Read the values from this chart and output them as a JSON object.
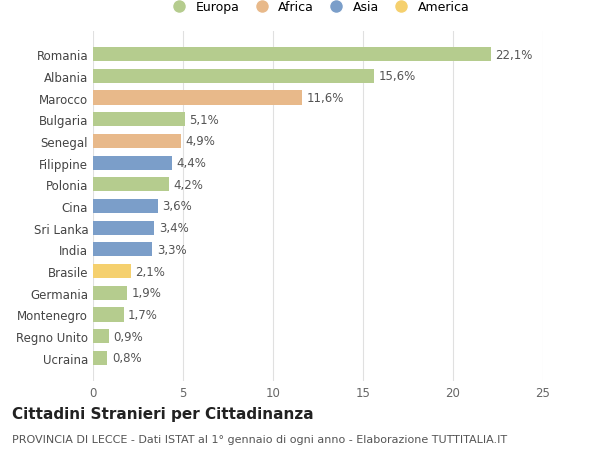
{
  "countries": [
    "Romania",
    "Albania",
    "Marocco",
    "Bulgaria",
    "Senegal",
    "Filippine",
    "Polonia",
    "Cina",
    "Sri Lanka",
    "India",
    "Brasile",
    "Germania",
    "Montenegro",
    "Regno Unito",
    "Ucraina"
  ],
  "values": [
    22.1,
    15.6,
    11.6,
    5.1,
    4.9,
    4.4,
    4.2,
    3.6,
    3.4,
    3.3,
    2.1,
    1.9,
    1.7,
    0.9,
    0.8
  ],
  "labels": [
    "22,1%",
    "15,6%",
    "11,6%",
    "5,1%",
    "4,9%",
    "4,4%",
    "4,2%",
    "3,6%",
    "3,4%",
    "3,3%",
    "2,1%",
    "1,9%",
    "1,7%",
    "0,9%",
    "0,8%"
  ],
  "colors": [
    "#b5cc8e",
    "#b5cc8e",
    "#e8b98a",
    "#b5cc8e",
    "#e8b98a",
    "#7b9ec9",
    "#b5cc8e",
    "#7b9ec9",
    "#7b9ec9",
    "#7b9ec9",
    "#f5d06e",
    "#b5cc8e",
    "#b5cc8e",
    "#b5cc8e",
    "#b5cc8e"
  ],
  "legend_labels": [
    "Europa",
    "Africa",
    "Asia",
    "America"
  ],
  "legend_colors": [
    "#b5cc8e",
    "#e8b98a",
    "#7b9ec9",
    "#f5d06e"
  ],
  "xlim": [
    0,
    25
  ],
  "xticks": [
    0,
    5,
    10,
    15,
    20,
    25
  ],
  "title": "Cittadini Stranieri per Cittadinanza",
  "subtitle": "PROVINCIA DI LECCE - Dati ISTAT al 1° gennaio di ogni anno - Elaborazione TUTTITALIA.IT",
  "background_color": "#ffffff",
  "grid_color": "#e0e0e0",
  "bar_height": 0.65,
  "title_fontsize": 11,
  "subtitle_fontsize": 8,
  "label_fontsize": 8.5,
  "tick_fontsize": 8.5,
  "legend_fontsize": 9
}
